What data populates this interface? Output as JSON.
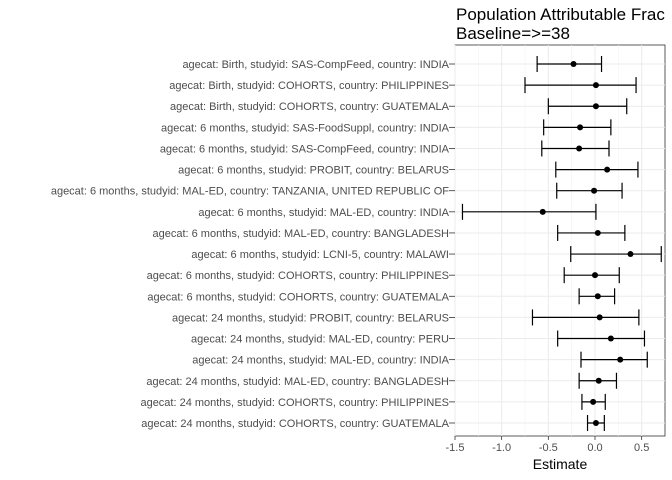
{
  "chart_data": {
    "type": "scatter",
    "title_lines": [
      "Population Attributable Frac",
      "Baseline=>=38"
    ],
    "xlabel": "Estimate",
    "ylabel": "",
    "xlim": [
      -1.5,
      0.75
    ],
    "xticks": [
      -1.5,
      -1.0,
      -0.5,
      0.0,
      0.5
    ],
    "xtick_labels": [
      "-1.5",
      "-1.0",
      "-0.5",
      "0.0",
      "0.5"
    ],
    "grid": true,
    "error_bars": true,
    "categories": [
      "agecat: Birth, studyid: SAS-CompFeed, country: INDIA",
      "agecat: Birth, studyid: COHORTS, country: PHILIPPINES",
      "agecat: Birth, studyid: COHORTS, country: GUATEMALA",
      "agecat: 6 months, studyid: SAS-FoodSuppl, country: INDIA",
      "agecat: 6 months, studyid: SAS-CompFeed, country: INDIA",
      "agecat: 6 months, studyid: PROBIT, country: BELARUS",
      "agecat: 6 months, studyid: MAL-ED, country: TANZANIA, UNITED REPUBLIC OF",
      "agecat: 6 months, studyid: MAL-ED, country: INDIA",
      "agecat: 6 months, studyid: MAL-ED, country: BANGLADESH",
      "agecat: 6 months, studyid: LCNI-5, country: MALAWI",
      "agecat: 6 months, studyid: COHORTS, country: PHILIPPINES",
      "agecat: 6 months, studyid: COHORTS, country: GUATEMALA",
      "agecat: 24 months, studyid: PROBIT, country: BELARUS",
      "agecat: 24 months, studyid: MAL-ED, country: PERU",
      "agecat: 24 months, studyid: MAL-ED, country: INDIA",
      "agecat: 24 months, studyid: MAL-ED, country: BANGLADESH",
      "agecat: 24 months, studyid: COHORTS, country: PHILIPPINES",
      "agecat: 24 months, studyid: COHORTS, country: GUATEMALA"
    ],
    "estimates": [
      -0.23,
      0.01,
      0.01,
      -0.16,
      -0.17,
      0.13,
      -0.01,
      -0.56,
      0.03,
      0.38,
      0.0,
      0.03,
      0.05,
      0.17,
      0.27,
      0.04,
      -0.02,
      0.01
    ],
    "ci_lower": [
      -0.62,
      -0.75,
      -0.5,
      -0.55,
      -0.57,
      -0.42,
      -0.41,
      -1.42,
      -0.4,
      -0.26,
      -0.33,
      -0.17,
      -0.67,
      -0.4,
      -0.15,
      -0.17,
      -0.14,
      -0.08
    ],
    "ci_upper": [
      0.07,
      0.44,
      0.34,
      0.17,
      0.15,
      0.46,
      0.29,
      0.01,
      0.32,
      0.71,
      0.26,
      0.21,
      0.47,
      0.53,
      0.56,
      0.23,
      0.11,
      0.1
    ]
  }
}
